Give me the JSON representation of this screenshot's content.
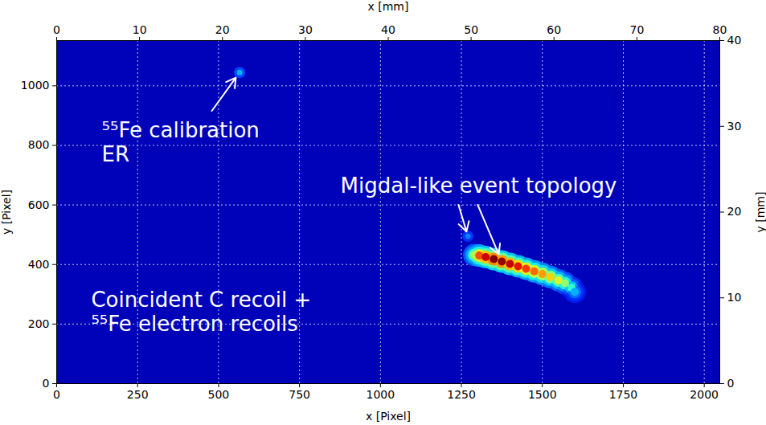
{
  "chart_data": {
    "type": "image",
    "xlabel": "x [Pixel]",
    "ylabel": "y [Pixel]",
    "x2label": "x [mm]",
    "y2label": "y [mm]",
    "xlim": [
      0,
      2048
    ],
    "xticks": [
      0,
      250,
      500,
      750,
      1000,
      1250,
      1500,
      1750,
      2000
    ],
    "ylim": [
      0,
      1152
    ],
    "yticks": [
      0,
      200,
      400,
      600,
      800,
      1000
    ],
    "x2lim": [
      0,
      80
    ],
    "x2ticks": [
      0,
      10,
      20,
      30,
      40,
      50,
      60,
      70,
      80
    ],
    "y2lim": [
      0,
      40
    ],
    "y2ticks": [
      0,
      10,
      20,
      30,
      40
    ],
    "grid": true,
    "zlim": [
      0,
      1
    ],
    "track": {
      "x": [
        1290,
        1305,
        1325,
        1350,
        1375,
        1400,
        1425,
        1450,
        1475,
        1500,
        1525,
        1550,
        1570,
        1590,
        1600
      ],
      "y": [
        432,
        430,
        425,
        418,
        410,
        402,
        394,
        386,
        377,
        368,
        358,
        347,
        337,
        322,
        308
      ],
      "intensity": [
        0.55,
        0.8,
        0.92,
        1.0,
        0.98,
        0.93,
        0.88,
        0.82,
        0.77,
        0.72,
        0.66,
        0.6,
        0.52,
        0.42,
        0.3
      ]
    },
    "spots": {
      "x": [
        565,
        1270
      ],
      "y": [
        1045,
        495
      ],
      "intensity": [
        0.3,
        0.25
      ]
    },
    "annotations": [
      {
        "text": "⁵⁵Fe calibration\nER"
      },
      {
        "text": "Migdal-like event topology"
      },
      {
        "text": "Coincident C recoil +\n⁵⁵Fe electron recoils"
      }
    ]
  }
}
